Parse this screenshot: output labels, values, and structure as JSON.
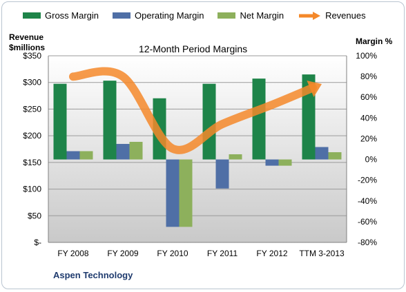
{
  "chart_data": {
    "type": "bar",
    "title": "12-Month Period Margins",
    "categories": [
      "FY 2008",
      "FY 2009",
      "FY 2010",
      "FY 2011",
      "FY 2012",
      "TTM 3-2013"
    ],
    "series": [
      {
        "name": "Gross Margin",
        "axis": "right",
        "color": "#1e8449",
        "values": [
          73,
          76,
          59,
          73,
          78,
          82
        ]
      },
      {
        "name": "Operating Margin",
        "axis": "right",
        "color": "#4f6fa6",
        "values": [
          8,
          15,
          -65,
          -28,
          -6,
          12
        ]
      },
      {
        "name": "Net Margin",
        "axis": "right",
        "color": "#8db05c",
        "values": [
          8,
          17,
          -65,
          5,
          -6,
          7
        ]
      },
      {
        "name": "Revenues",
        "type": "line",
        "axis": "left",
        "color": "#f4882a",
        "values": [
          311,
          311,
          176,
          222,
          258,
          297
        ]
      }
    ],
    "left_axis": {
      "label": "Revenue $millions",
      "label_lines": [
        "Revenue",
        "$millions"
      ],
      "ylim": [
        0,
        350
      ],
      "ticks": [
        "$-",
        "$50",
        "$100",
        "$150",
        "$200",
        "$250",
        "$300",
        "$350"
      ]
    },
    "right_axis": {
      "label": "Margin %",
      "ylim": [
        -80,
        100
      ],
      "ticks": [
        "-80%",
        "-60%",
        "-40%",
        "-20%",
        "0%",
        "20%",
        "40%",
        "60%",
        "80%",
        "100%"
      ]
    },
    "legend_position": "top",
    "grid": true
  },
  "footer_label": "Aspen Technology"
}
